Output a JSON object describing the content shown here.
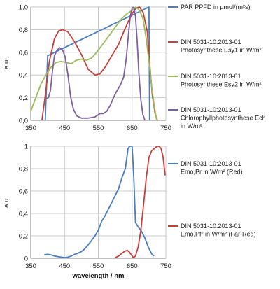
{
  "chart_data": [
    {
      "type": "line",
      "xlabel": "",
      "ylabel": "a.u.",
      "xlim": [
        350,
        750
      ],
      "ylim": [
        0,
        1.0
      ],
      "x_ticks": [
        "350",
        "450",
        "550",
        "650",
        "750"
      ],
      "y_ticks": [
        "0,0",
        "0,2",
        "0,4",
        "0,6",
        "0,8",
        "1,0"
      ],
      "x_tick_values": [
        350,
        450,
        550,
        650,
        750
      ],
      "y_tick_values": [
        0,
        0.2,
        0.4,
        0.6,
        0.8,
        1.0
      ],
      "grid": true,
      "legend_position": "right",
      "series": [
        {
          "name": "PAR PPFD in µmol/(m²s)",
          "color": "#4a7cc2",
          "points": [
            [
              393,
              0
            ],
            [
              400,
              0.57
            ],
            [
              700,
              1.0
            ],
            [
              702,
              0
            ]
          ]
        },
        {
          "name": "DIN 5031-10:2013-01 Photosynthese Esy1 in W/m²",
          "color": "#c8403c",
          "points": [
            [
              383,
              0
            ],
            [
              393,
              0.22
            ],
            [
              405,
              0.52
            ],
            [
              420,
              0.72
            ],
            [
              433,
              0.79
            ],
            [
              445,
              0.8
            ],
            [
              460,
              0.78
            ],
            [
              478,
              0.7
            ],
            [
              500,
              0.58
            ],
            [
              520,
              0.45
            ],
            [
              540,
              0.4
            ],
            [
              555,
              0.41
            ],
            [
              570,
              0.47
            ],
            [
              590,
              0.57
            ],
            [
              610,
              0.67
            ],
            [
              625,
              0.78
            ],
            [
              640,
              0.88
            ],
            [
              652,
              0.95
            ],
            [
              662,
              0.99
            ],
            [
              672,
              1.0
            ],
            [
              683,
              0.95
            ],
            [
              695,
              0.78
            ],
            [
              702,
              0.5
            ],
            [
              710,
              0.22
            ],
            [
              718,
              0.06
            ],
            [
              725,
              0
            ]
          ]
        },
        {
          "name": "DIN 5031-10:2013-01 Photosynthese Esy2 in W/m²",
          "color": "#9bbb59",
          "points": [
            [
              350,
              0.08
            ],
            [
              365,
              0.2
            ],
            [
              380,
              0.32
            ],
            [
              395,
              0.4
            ],
            [
              410,
              0.47
            ],
            [
              425,
              0.51
            ],
            [
              440,
              0.52
            ],
            [
              455,
              0.51
            ],
            [
              470,
              0.5
            ],
            [
              485,
              0.53
            ],
            [
              500,
              0.54
            ],
            [
              515,
              0.53
            ],
            [
              530,
              0.55
            ],
            [
              545,
              0.6
            ],
            [
              560,
              0.66
            ],
            [
              575,
              0.72
            ],
            [
              590,
              0.78
            ],
            [
              605,
              0.84
            ],
            [
              620,
              0.9
            ],
            [
              635,
              0.94
            ],
            [
              650,
              0.97
            ],
            [
              662,
              1.0
            ],
            [
              672,
              0.97
            ],
            [
              682,
              0.9
            ],
            [
              692,
              0.72
            ],
            [
              700,
              0.52
            ],
            [
              708,
              0.3
            ],
            [
              716,
              0.12
            ],
            [
              723,
              0
            ]
          ]
        },
        {
          "name": "DIN 5031-10:2013-01 Chlorophyllphotosynthese Ech in W/m²",
          "color": "#7d60a0",
          "points": [
            [
              396,
              0.19
            ],
            [
              402,
              0.2
            ],
            [
              408,
              0.26
            ],
            [
              414,
              0.43
            ],
            [
              420,
              0.57
            ],
            [
              428,
              0.62
            ],
            [
              436,
              0.64
            ],
            [
              444,
              0.62
            ],
            [
              452,
              0.56
            ],
            [
              460,
              0.4
            ],
            [
              468,
              0.21
            ],
            [
              476,
              0.1
            ],
            [
              486,
              0.04
            ],
            [
              500,
              0.02
            ],
            [
              520,
              0.02
            ],
            [
              540,
              0.03
            ],
            [
              555,
              0.06
            ],
            [
              565,
              0.06
            ],
            [
              575,
              0.08
            ],
            [
              585,
              0.13
            ],
            [
              595,
              0.2
            ],
            [
              605,
              0.26
            ],
            [
              615,
              0.31
            ],
            [
              625,
              0.38
            ],
            [
              633,
              0.55
            ],
            [
              640,
              0.78
            ],
            [
              645,
              0.92
            ],
            [
              650,
              0.99
            ],
            [
              655,
              1.0
            ],
            [
              660,
              0.92
            ],
            [
              665,
              0.7
            ],
            [
              670,
              0.42
            ],
            [
              676,
              0.18
            ],
            [
              682,
              0.05
            ],
            [
              688,
              0
            ]
          ]
        }
      ]
    },
    {
      "type": "line",
      "xlabel": "wavelength / nm",
      "ylabel": "a.u.",
      "xlim": [
        350,
        750
      ],
      "ylim": [
        0,
        1
      ],
      "x_ticks": [
        "350",
        "450",
        "550",
        "650",
        "750"
      ],
      "y_ticks": [
        "0",
        "0,2",
        "0,4",
        "0,6",
        "0,8",
        "1"
      ],
      "x_tick_values": [
        350,
        450,
        550,
        650,
        750
      ],
      "y_tick_values": [
        0,
        0.2,
        0.4,
        0.6,
        0.8,
        1
      ],
      "grid": true,
      "legend_position": "right",
      "series": [
        {
          "name": "DIN 5031-10:2013-01 Emo,Pr in W/m² (Red)",
          "color": "#4a7cc2",
          "points": [
            [
              390,
              0.03
            ],
            [
              400,
              0.035
            ],
            [
              410,
              0.03
            ],
            [
              420,
              0.02
            ],
            [
              430,
              0.015
            ],
            [
              440,
              0.01
            ],
            [
              450,
              0.005
            ],
            [
              460,
              0.01
            ],
            [
              470,
              0.02
            ],
            [
              480,
              0.035
            ],
            [
              490,
              0.045
            ],
            [
              500,
              0.06
            ],
            [
              510,
              0.085
            ],
            [
              520,
              0.12
            ],
            [
              530,
              0.16
            ],
            [
              540,
              0.2
            ],
            [
              550,
              0.25
            ],
            [
              560,
              0.33
            ],
            [
              570,
              0.38
            ],
            [
              580,
              0.44
            ],
            [
              590,
              0.5
            ],
            [
              600,
              0.56
            ],
            [
              610,
              0.62
            ],
            [
              620,
              0.72
            ],
            [
              630,
              0.8
            ],
            [
              638,
              0.98
            ],
            [
              643,
              1.0
            ],
            [
              650,
              1.0
            ],
            [
              655,
              0.72
            ],
            [
              660,
              0.32
            ],
            [
              668,
              0.28
            ],
            [
              678,
              0.24
            ],
            [
              688,
              0.18
            ],
            [
              698,
              0.1
            ],
            [
              708,
              0.04
            ],
            [
              715,
              0.02
            ]
          ]
        },
        {
          "name": "DIN 5031-10:2013-01 Emo,Pfr in W/m² (Far-Red)",
          "color": "#c8403c",
          "points": [
            [
              600,
              0.005
            ],
            [
              610,
              0.02
            ],
            [
              620,
              0.045
            ],
            [
              630,
              0.065
            ],
            [
              636,
              0.07
            ],
            [
              642,
              0.055
            ],
            [
              648,
              0.03
            ],
            [
              654,
              0.005
            ],
            [
              660,
              0.02
            ],
            [
              668,
              0.1
            ],
            [
              676,
              0.25
            ],
            [
              684,
              0.48
            ],
            [
              692,
              0.72
            ],
            [
              700,
              0.9
            ],
            [
              708,
              0.96
            ],
            [
              716,
              0.98
            ],
            [
              724,
              1.0
            ],
            [
              730,
              1.0
            ],
            [
              736,
              0.98
            ],
            [
              742,
              0.9
            ],
            [
              748,
              0.74
            ]
          ]
        }
      ]
    }
  ]
}
